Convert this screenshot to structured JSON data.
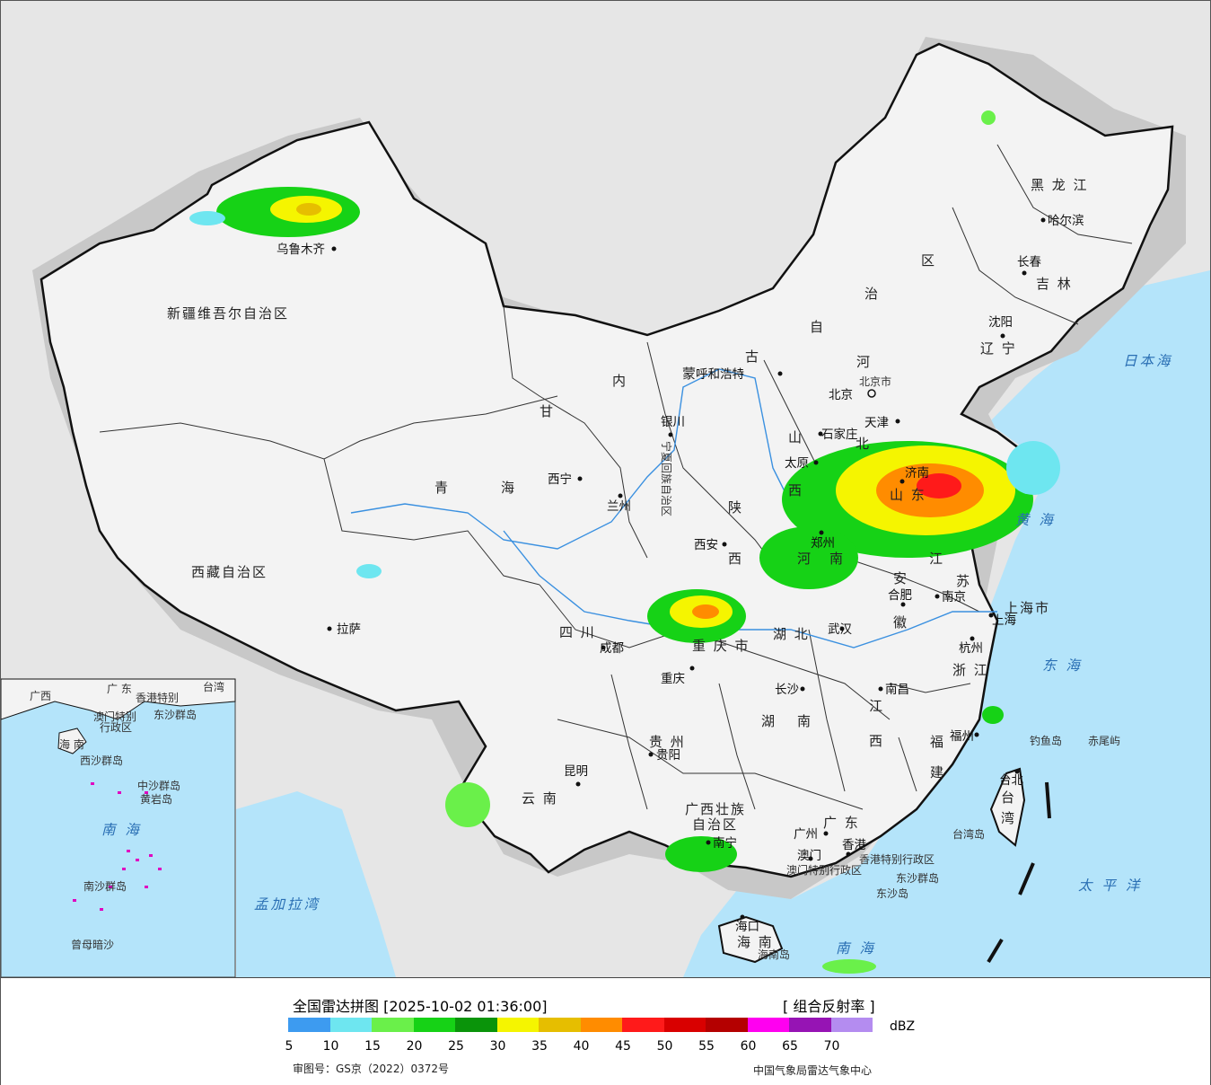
{
  "legend": {
    "title": "全国雷达拼图 [2025-10-02 01:36:00]",
    "product": "[ 组合反射率 ]",
    "unit": "dBZ",
    "ticks": [
      "5",
      "10",
      "15",
      "20",
      "25",
      "30",
      "35",
      "40",
      "45",
      "50",
      "55",
      "60",
      "65",
      "70"
    ],
    "colors": [
      "#3d9bf0",
      "#6ee6f0",
      "#6af04a",
      "#16d216",
      "#0a940a",
      "#f5f500",
      "#e6be00",
      "#ff8c00",
      "#ff1a1a",
      "#d90000",
      "#b40000",
      "#ff00f0",
      "#9614b4",
      "#b48cf0"
    ],
    "approval": "审图号：GS京（2022）0372号",
    "source": "中国气象局雷达气象中心"
  },
  "colors": {
    "sea": "#b4e4fa",
    "land": "#f3f3f3",
    "outside": "#e6e6e6",
    "border": "#111111",
    "rivers": "#3a90e0"
  },
  "provinces": {
    "xinjiang": "新疆维吾尔自治区",
    "xizang": "西藏自治区",
    "qinghai_a": "青",
    "qinghai_b": "海",
    "gansu": "甘",
    "neimenggu_a": "内",
    "neimenggu_b": "蒙",
    "neimenggu_c": "古",
    "neimenggu_d": "自",
    "neimenggu_e": "治",
    "neimenggu_f": "区",
    "heilongjiang": "黑 龙 江",
    "jilin": "吉 林",
    "liaoning": "辽 宁",
    "hebei_a": "河",
    "hebei_b": "北",
    "shanxi_a": "山",
    "shanxi_b": "西",
    "shaanxi_a": "陕",
    "shaanxi_b": "西",
    "shandong": "山 东",
    "henan_a": "河",
    "henan_b": "南",
    "jiangsu_a": "江",
    "jiangsu_b": "苏",
    "anhui_a": "安",
    "anhui_b": "徽",
    "shanghai": "上海市",
    "zhejiang": "浙 江",
    "hubei": "湖 北",
    "hunan_a": "湖",
    "hunan_b": "南",
    "jiangxi_a": "江",
    "jiangxi_b": "西",
    "fujian_a": "福",
    "fujian_b": "建",
    "sichuan": "四 川",
    "chongqing": "重 庆 市",
    "guizhou": "贵 州",
    "yunnan": "云 南",
    "guangxi_a": "广西壮族",
    "guangxi_b": "自治区",
    "guangdong": "广 东",
    "hainan": "海 南",
    "taiwan_a": "台",
    "taiwan_b": "湾",
    "ningxia": "宁夏回族自治区",
    "tianjin": "天津",
    "hongkong": "香港特别行政区",
    "macau": "澳门特别行政区",
    "taiwan_prov": "台湾岛",
    "beijing_city": "北京市"
  },
  "cities": {
    "urumqi": "乌鲁木齐",
    "lhasa": "拉萨",
    "xining": "西宁",
    "lanzhou": "兰州",
    "yinchuan": "银川",
    "hohhot": "呼和浩特",
    "beijing": "北京",
    "tianjin": "天津",
    "shijiazhuang": "石家庄",
    "taiyuan": "太原",
    "jinan": "济南",
    "zhengzhou": "郑州",
    "xian": "西安",
    "hefei": "合肥",
    "nanjing": "南京",
    "shanghai": "上海",
    "hangzhou": "杭州",
    "wuhan": "武汉",
    "changsha": "长沙",
    "nanchang": "南昌",
    "fuzhou": "福州",
    "taipei": "台北",
    "chengdu": "成都",
    "chongqing": "重庆",
    "guiyang": "贵阳",
    "kunming": "昆明",
    "nanning": "南宁",
    "guangzhou": "广州",
    "hongkong": "香港",
    "macau": "澳门",
    "haikou": "海口",
    "harbin": "哈尔滨",
    "changchun": "长春",
    "shenyang": "沈阳"
  },
  "seas": {
    "japan_sea": "日本海",
    "yellow_sea": "黄 海",
    "east_sea": "东 海",
    "pacific": "太 平 洋",
    "south_sea": "南 海",
    "bengal": "孟加拉湾"
  },
  "islands": {
    "diaoyu": "钓鱼岛",
    "chiwei": "赤尾屿",
    "dongsha": "东沙群岛",
    "dongsha_b": "东沙岛",
    "hainan_isl": "海南岛"
  },
  "inset": {
    "guangdong": "广 东",
    "guangxi": "广西",
    "taiwan": "台湾",
    "hongkong": "香港特别",
    "macau": "澳门特别",
    "admin": "行政区",
    "dongsha": "东沙群岛",
    "hainan": "海 南",
    "xisha": "西沙群岛",
    "zhongsha": "中沙群岛",
    "huangyan": "黄岩岛",
    "nansha": "南沙群岛",
    "south_sea": "南 海",
    "zengmu": "曾母暗沙"
  }
}
